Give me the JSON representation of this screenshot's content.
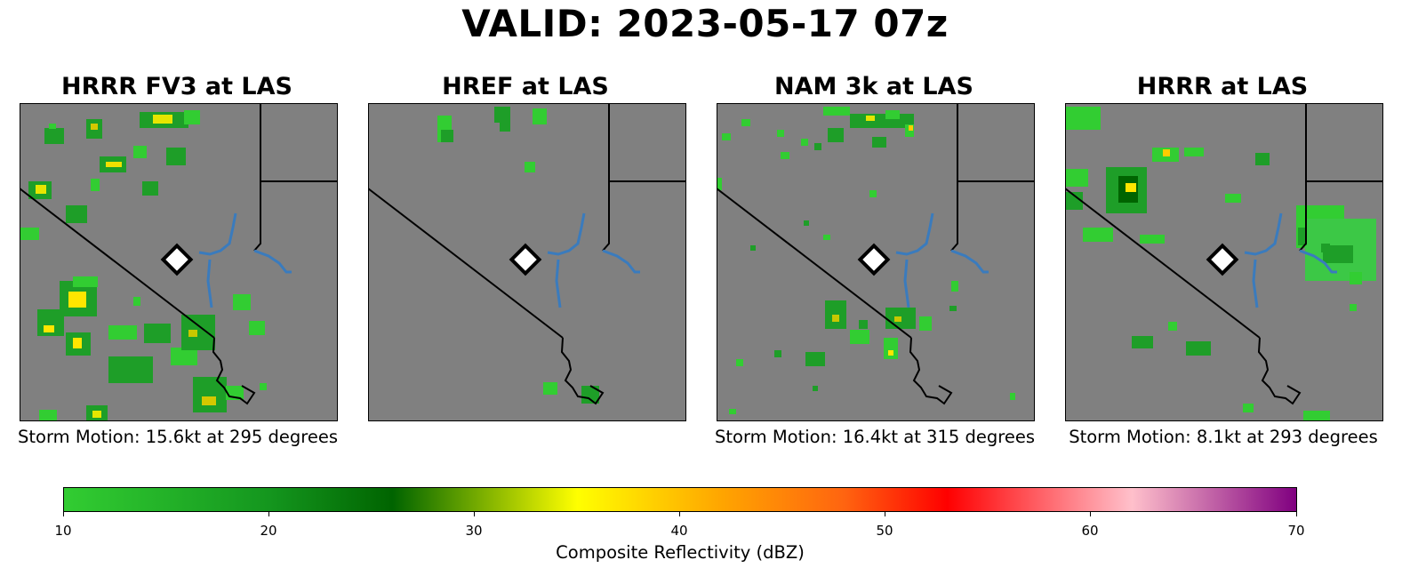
{
  "title": "VALID: 2023-05-17 07z",
  "panels": [
    {
      "title": "HRRR FV3 at LAS",
      "caption": "Storm Motion: 15.6kt at 295 degrees"
    },
    {
      "title": "HREF at LAS",
      "caption": ""
    },
    {
      "title": "NAM 3k at LAS",
      "caption": "Storm Motion: 16.4kt at 315 degrees"
    },
    {
      "title": "HRRR at LAS",
      "caption": "Storm Motion: 8.1kt at 293 degrees"
    }
  ],
  "colorbar": {
    "label": "Composite Reflectivity (dBZ)",
    "ticks": [
      "10",
      "20",
      "30",
      "40",
      "50",
      "60",
      "70"
    ],
    "range": [
      10,
      70
    ],
    "stops": [
      {
        "dbz": 10,
        "color": "#32cd32"
      },
      {
        "dbz": 20,
        "color": "#14961e"
      },
      {
        "dbz": 26,
        "color": "#006400"
      },
      {
        "dbz": 35,
        "color": "#ffff00"
      },
      {
        "dbz": 42,
        "color": "#ffa500"
      },
      {
        "dbz": 48,
        "color": "#ff6410"
      },
      {
        "dbz": 53,
        "color": "#ff0000"
      },
      {
        "dbz": 62,
        "color": "#ffc0cb"
      },
      {
        "dbz": 70,
        "color": "#800080"
      }
    ]
  },
  "map_colors": {
    "background": "#808080",
    "boundary": "#000000",
    "water": "#3a7bbd",
    "marker_fill": "#ffffff",
    "marker_stroke": "#000000"
  }
}
